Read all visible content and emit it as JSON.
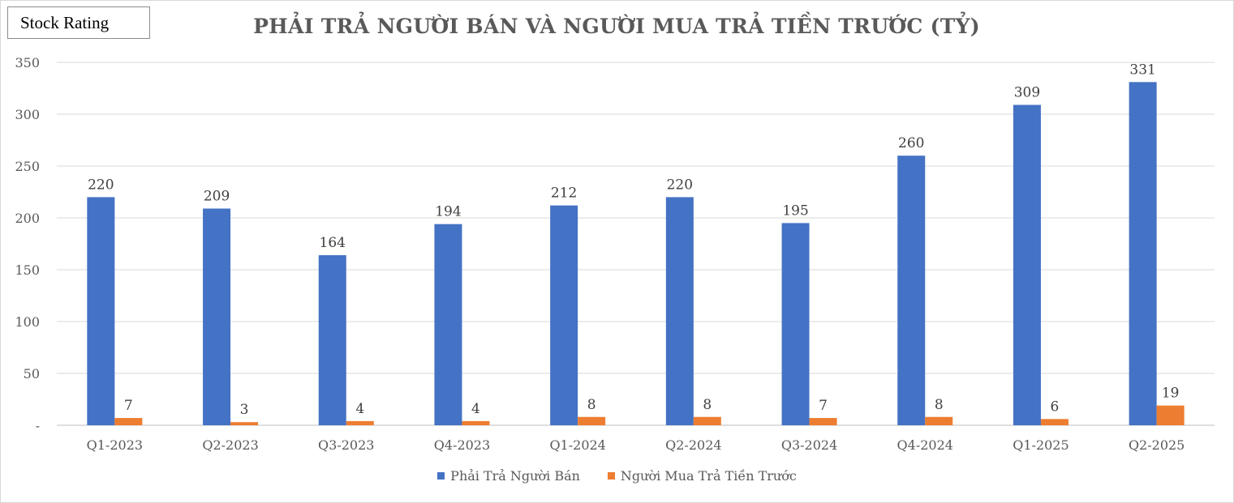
{
  "badge": {
    "label": "Stock Rating"
  },
  "chart_data": {
    "type": "bar",
    "title": "PHẢI TRẢ NGƯỜI BÁN VÀ NGƯỜI MUA TRẢ TIỀN TRƯỚC (TỶ)",
    "categories": [
      "Q1-2023",
      "Q2-2023",
      "Q3-2023",
      "Q4-2023",
      "Q1-2024",
      "Q2-2024",
      "Q3-2024",
      "Q4-2024",
      "Q1-2025",
      "Q2-2025"
    ],
    "series": [
      {
        "name": "Phải Trả Người Bán",
        "color": "#4472c4",
        "values": [
          220,
          209,
          164,
          194,
          212,
          220,
          195,
          260,
          309,
          331
        ]
      },
      {
        "name": "Người Mua Trả Tiền Trước",
        "color": "#ed7d31",
        "values": [
          7,
          3,
          4,
          4,
          8,
          8,
          7,
          8,
          6,
          19
        ]
      }
    ],
    "ylim": [
      0,
      350
    ],
    "yticks": [
      "-",
      "50",
      "100",
      "150",
      "200",
      "250",
      "300",
      "350"
    ],
    "grid": true,
    "legend_position": "bottom"
  }
}
